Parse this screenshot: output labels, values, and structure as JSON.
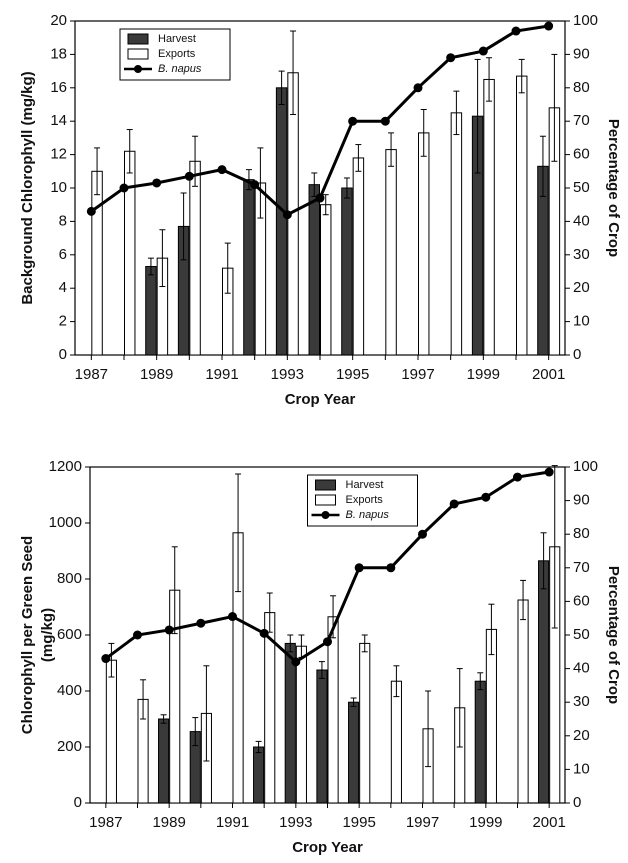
{
  "chart_data": [
    {
      "type": "bar",
      "xlabel": "Crop Year",
      "ylabel": [
        "Background Chlorophyll (mg/kg)"
      ],
      "y2label": "Percentage of Crop",
      "categories": [
        1987,
        null,
        1989,
        null,
        1991,
        null,
        1993,
        null,
        1995,
        null,
        1997,
        null,
        1999,
        null,
        2001
      ],
      "ylim": [
        0,
        20
      ],
      "yticks": [
        0,
        2,
        4,
        6,
        8,
        10,
        12,
        14,
        16,
        18,
        20
      ],
      "y2lim": [
        0,
        100
      ],
      "y2ticks": [
        0,
        10,
        20,
        30,
        40,
        50,
        60,
        70,
        80,
        90,
        100
      ],
      "legend": "upper left",
      "series": [
        {
          "name": "Harvest",
          "type": "bar",
          "color": "#3a3a3a",
          "values": [
            null,
            null,
            5.3,
            7.7,
            null,
            10.5,
            16.0,
            10.2,
            10.0,
            null,
            null,
            null,
            14.3,
            null,
            11.3
          ],
          "errors": [
            null,
            null,
            0.5,
            2.0,
            null,
            0.6,
            1.0,
            0.7,
            0.6,
            null,
            null,
            null,
            3.4,
            null,
            1.8
          ]
        },
        {
          "name": "Exports",
          "type": "bar",
          "color": "#ffffff",
          "values": [
            11.0,
            12.2,
            5.8,
            11.6,
            5.2,
            10.3,
            16.9,
            9.0,
            11.8,
            12.3,
            13.3,
            14.5,
            16.5,
            16.7,
            14.8
          ],
          "errors": [
            1.4,
            1.3,
            1.7,
            1.5,
            1.5,
            2.1,
            2.5,
            0.6,
            0.8,
            1.0,
            1.4,
            1.3,
            1.3,
            1.0,
            3.2
          ]
        },
        {
          "name": "B. napus",
          "type": "line",
          "color": "#000000",
          "axis": "y2",
          "values": [
            43,
            50,
            51.5,
            53.5,
            55.5,
            51,
            42,
            47,
            70,
            70,
            80,
            89,
            91,
            97,
            98.5
          ]
        }
      ]
    },
    {
      "type": "bar",
      "xlabel": "Crop Year",
      "ylabel": [
        "Chlorophyll per Green Seed",
        "(mg/kg)"
      ],
      "y2label": "Percentage of Crop",
      "categories": [
        1987,
        null,
        1989,
        null,
        1991,
        null,
        1993,
        null,
        1995,
        null,
        1997,
        null,
        1999,
        null,
        2001
      ],
      "ylim": [
        0,
        1200
      ],
      "yticks": [
        0,
        200,
        400,
        600,
        800,
        1000,
        1200
      ],
      "y2lim": [
        0,
        100
      ],
      "y2ticks": [
        0,
        10,
        20,
        30,
        40,
        50,
        60,
        70,
        80,
        90,
        100
      ],
      "legend": "upper center",
      "series": [
        {
          "name": "Harvest",
          "type": "bar",
          "color": "#3a3a3a",
          "values": [
            null,
            null,
            300,
            255,
            null,
            200,
            570,
            475,
            360,
            null,
            null,
            null,
            435,
            null,
            865
          ],
          "errors": [
            null,
            null,
            15,
            50,
            null,
            20,
            30,
            30,
            15,
            null,
            null,
            null,
            30,
            null,
            100
          ]
        },
        {
          "name": "Exports",
          "type": "bar",
          "color": "#ffffff",
          "values": [
            510,
            370,
            760,
            320,
            965,
            680,
            560,
            665,
            570,
            435,
            265,
            340,
            620,
            725,
            915
          ],
          "errors": [
            60,
            70,
            155,
            170,
            210,
            70,
            40,
            75,
            30,
            55,
            135,
            140,
            90,
            70,
            290
          ]
        },
        {
          "name": "B. napus",
          "type": "line",
          "color": "#000000",
          "axis": "y2",
          "values": [
            43,
            50,
            51.5,
            53.5,
            55.5,
            50.5,
            42,
            48,
            70,
            70,
            80,
            89,
            91,
            97,
            98.5
          ]
        }
      ]
    }
  ]
}
